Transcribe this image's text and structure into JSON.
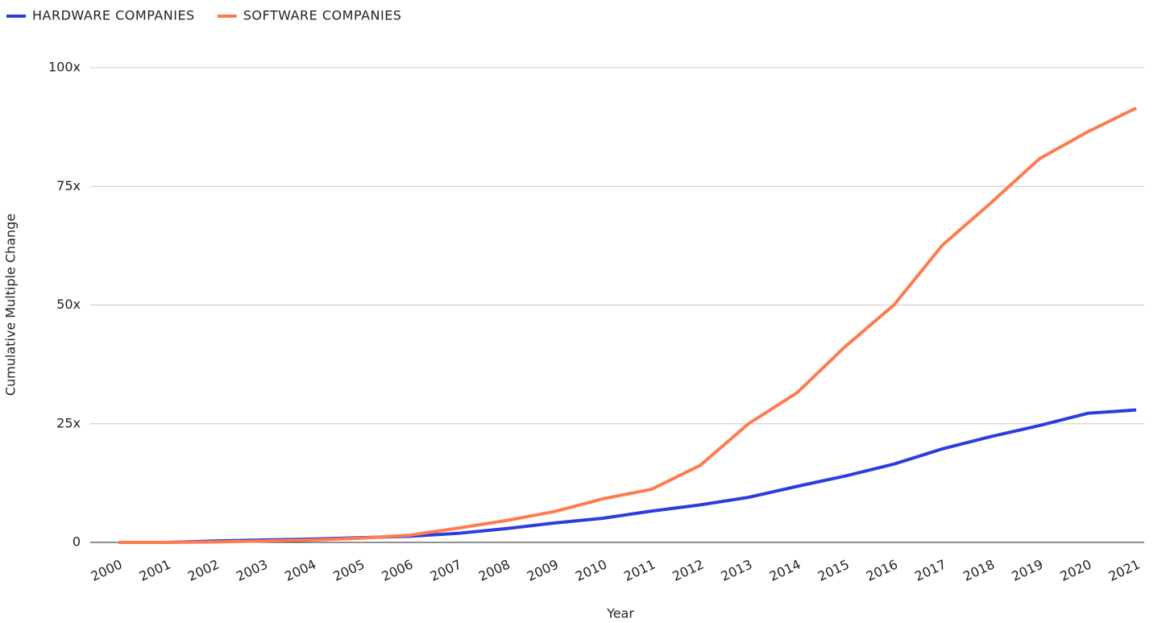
{
  "chart_data": {
    "type": "line",
    "x_label": "Year",
    "y_label": "Cumulative Multiple Change",
    "categories": [
      "2000",
      "2001",
      "2002",
      "2003",
      "2004",
      "2005",
      "2006",
      "2007",
      "2008",
      "2009",
      "2010",
      "2011",
      "2012",
      "2013",
      "2014",
      "2015",
      "2016",
      "2017",
      "2018",
      "2019",
      "2020",
      "2021"
    ],
    "series": [
      {
        "name": "HARDWARE COMPANIES",
        "color": "#2c3ce0",
        "values": [
          0,
          0,
          0.3,
          0.5,
          0.7,
          1,
          1.3,
          1.9,
          2.9,
          4.1,
          5.1,
          6.6,
          7.9,
          9.5,
          11.8,
          14,
          16.5,
          19.7,
          22.3,
          24.6,
          27.2,
          27.9
        ]
      },
      {
        "name": "SOFTWARE COMPANIES",
        "color": "#ff7b4f",
        "values": [
          0,
          0,
          0.1,
          0.3,
          0.5,
          0.9,
          1.5,
          3,
          4.6,
          6.5,
          9.2,
          11.2,
          16.2,
          25,
          31.5,
          41.3,
          50,
          62.6,
          71.5,
          80.8,
          86.5,
          91.5
        ]
      }
    ],
    "ylim": [
      0,
      100
    ],
    "yticks": [
      0,
      {
        "value": 25,
        "label": "25x"
      },
      {
        "value": 50,
        "label": "50x"
      },
      {
        "value": 75,
        "label": "75x"
      },
      {
        "value": 100,
        "label": "100x"
      }
    ],
    "grid": true,
    "legend": "top-left"
  }
}
